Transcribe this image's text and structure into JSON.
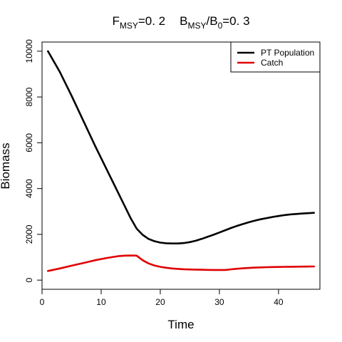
{
  "chart_data": {
    "type": "line",
    "title": {
      "f_main": "F",
      "f_sub": "MSY",
      "f_value": "=0. 2",
      "b_main": "B",
      "b_sub": "MSY",
      "b_mid": "/B",
      "b_sub0": "0",
      "b_value": "=0. 3"
    },
    "xlabel": "Time",
    "ylabel": "Biomass",
    "xlim": [
      0,
      47
    ],
    "ylim": [
      -400,
      10400
    ],
    "x_ticks": [
      0,
      10,
      20,
      30,
      40
    ],
    "y_ticks": [
      0,
      2000,
      4000,
      6000,
      8000,
      10000
    ],
    "legend_position": "top-right",
    "grid": false,
    "series": [
      {
        "name": "PT Population",
        "color": "#000000",
        "x": [
          1,
          3,
          5,
          7,
          9,
          11,
          13,
          15,
          16,
          17,
          18,
          19,
          20,
          21,
          22,
          23,
          24,
          25,
          26,
          27,
          28,
          29,
          30,
          31,
          32,
          33,
          34,
          35,
          36,
          37,
          38,
          39,
          40,
          41,
          42,
          43,
          44,
          45,
          46
        ],
        "y": [
          10000,
          9100,
          8050,
          6950,
          5850,
          4800,
          3750,
          2700,
          2250,
          1980,
          1800,
          1700,
          1640,
          1610,
          1600,
          1600,
          1620,
          1660,
          1720,
          1800,
          1890,
          1980,
          2080,
          2180,
          2280,
          2370,
          2450,
          2530,
          2600,
          2660,
          2710,
          2760,
          2800,
          2840,
          2870,
          2890,
          2910,
          2925,
          2940
        ]
      },
      {
        "name": "Catch",
        "color": "#e00000",
        "x": [
          1,
          3,
          5,
          7,
          9,
          11,
          13,
          14,
          15,
          16,
          17,
          18,
          19,
          20,
          21,
          22,
          23,
          24,
          25,
          26,
          27,
          28,
          29,
          30,
          31,
          32,
          33,
          34,
          35,
          36,
          37,
          38,
          39,
          40,
          41,
          42,
          43,
          44,
          45,
          46
        ],
        "y": [
          400,
          510,
          630,
          750,
          870,
          970,
          1050,
          1070,
          1075,
          1070,
          870,
          730,
          640,
          580,
          540,
          510,
          490,
          475,
          465,
          458,
          452,
          448,
          445,
          444,
          443,
          470,
          495,
          515,
          530,
          545,
          555,
          565,
          570,
          575,
          580,
          585,
          588,
          590,
          592,
          595
        ]
      }
    ]
  }
}
